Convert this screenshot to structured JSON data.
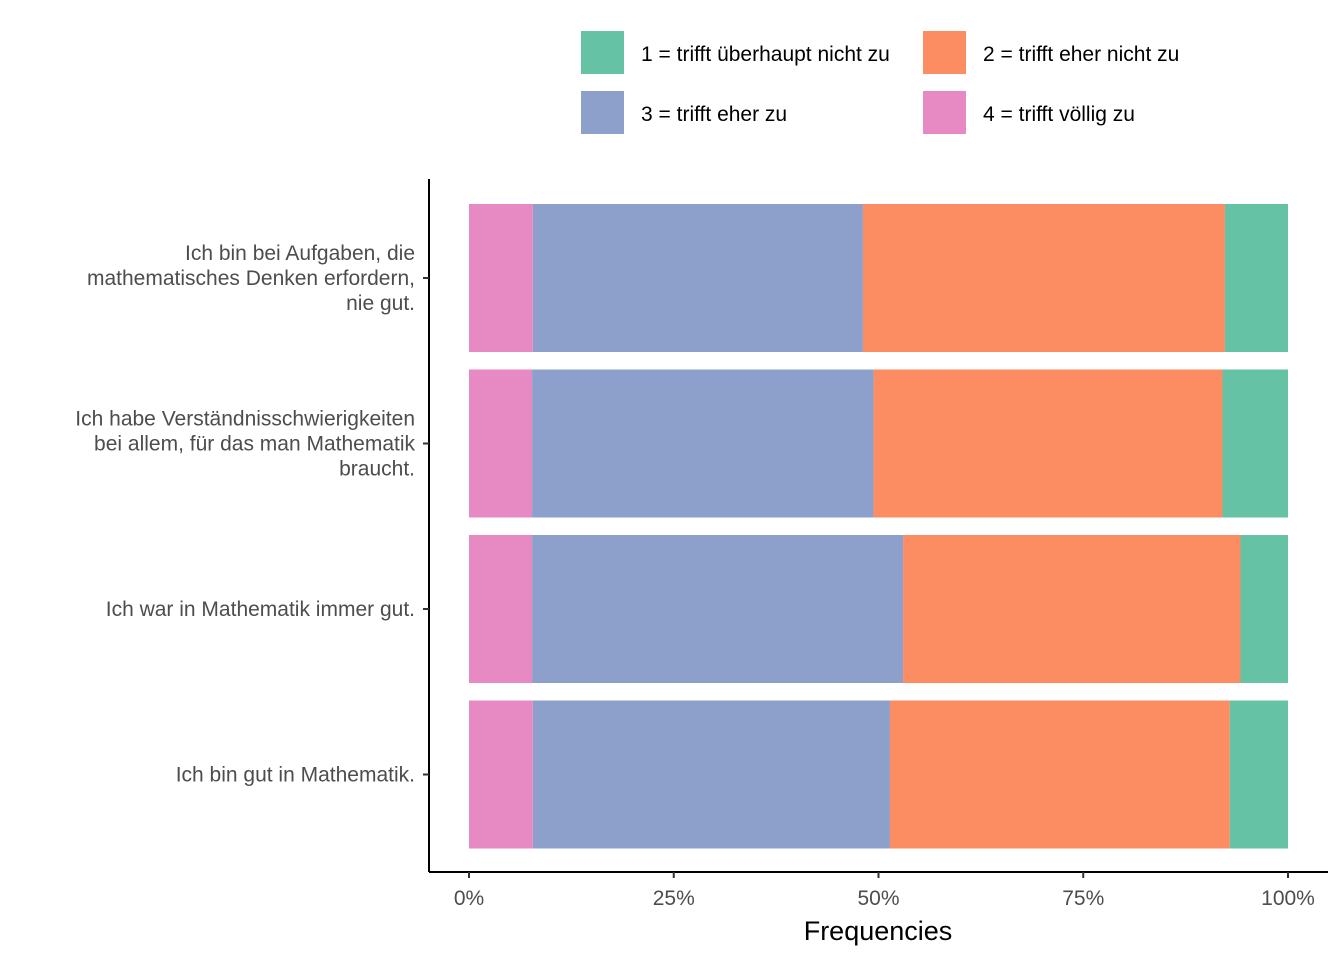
{
  "chart_data": {
    "type": "bar",
    "orientation": "horizontal",
    "stacked": true,
    "normalized": true,
    "xlabel": "Frequencies",
    "ylabel": "",
    "xlim": [
      0,
      1
    ],
    "x_ticks": [
      {
        "value": 0,
        "label": "0%"
      },
      {
        "value": 0.25,
        "label": "25%"
      },
      {
        "value": 0.5,
        "label": "50%"
      },
      {
        "value": 0.75,
        "label": "75%"
      },
      {
        "value": 1,
        "label": "100%"
      }
    ],
    "categories": [
      {
        "label_lines": [
          "Ich bin bei Aufgaben, die",
          "mathematisches Denken erfordern,",
          "nie gut."
        ]
      },
      {
        "label_lines": [
          "Ich habe Verständnisschwierigkeiten",
          "bei allem, für das man Mathematik",
          "braucht."
        ]
      },
      {
        "label_lines": [
          "Ich war in Mathematik immer gut."
        ]
      },
      {
        "label_lines": [
          "Ich bin gut in Mathematik."
        ]
      }
    ],
    "series": [
      {
        "name": "4 = trifft völlig zu",
        "color": "#E78AC3",
        "values": [
          0.078,
          0.077,
          0.077,
          0.078
        ]
      },
      {
        "name": "3 = trifft eher zu",
        "color": "#8DA0CB",
        "values": [
          0.403,
          0.417,
          0.453,
          0.436
        ]
      },
      {
        "name": "2 = trifft eher nicht zu",
        "color": "#FC8D62",
        "values": [
          0.442,
          0.426,
          0.412,
          0.415
        ]
      },
      {
        "name": "1 = trifft überhaupt nicht zu",
        "color": "#66C2A5",
        "values": [
          0.077,
          0.08,
          0.058,
          0.071
        ]
      }
    ],
    "legend": {
      "position": "top",
      "order": [
        "1 = trifft überhaupt nicht zu",
        "2 = trifft eher nicht zu",
        "3 = trifft eher zu",
        "4 = trifft völlig zu"
      ]
    },
    "grid": false
  }
}
